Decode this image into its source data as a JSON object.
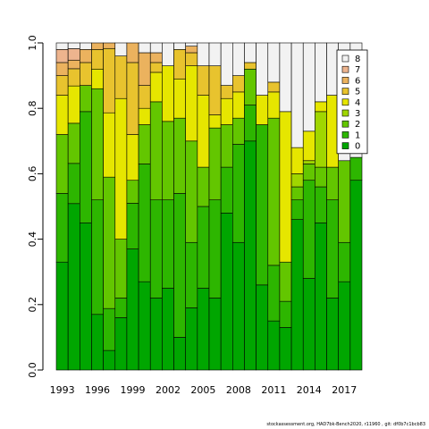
{
  "chart_data": {
    "type": "bar",
    "stacked": true,
    "normalized": true,
    "ylim": [
      0,
      1
    ],
    "x_tick_labels": [
      "1993",
      "1996",
      "1999",
      "2002",
      "2005",
      "2008",
      "2011",
      "2014",
      "2017"
    ],
    "y_tick_labels": [
      "0.0",
      "0.2",
      "0.4",
      "0.6",
      "0.8",
      "1.0"
    ],
    "categories": [
      "1993",
      "1994",
      "1995",
      "1996",
      "1997",
      "1998",
      "1999",
      "2000",
      "2001",
      "2002",
      "2003",
      "2004",
      "2005",
      "2006",
      "2007",
      "2008",
      "2009",
      "2010",
      "2011",
      "2012",
      "2013",
      "2014",
      "2015",
      "2016",
      "2017",
      "2018"
    ],
    "series": [
      {
        "name": "0",
        "color": "#00A600",
        "values": [
          0.33,
          0.58,
          0.45,
          0.17,
          0.07,
          0.16,
          0.37,
          0.27,
          0.22,
          0.25,
          0.1,
          0.19,
          0.25,
          0.22,
          0.48,
          0.39,
          0.7,
          0.26,
          0.15,
          0.13,
          0.46,
          0.28,
          0.45,
          0.22,
          0.27,
          0.58
        ]
      },
      {
        "name": "1",
        "color": "#2DB600",
        "values": [
          0.21,
          0.14,
          0.34,
          0.35,
          0.15,
          0.06,
          0.14,
          0.36,
          0.3,
          0.27,
          0.44,
          0.2,
          0.25,
          0.3,
          0.14,
          0.3,
          0.11,
          0.49,
          0.17,
          0.08,
          0.06,
          0.3,
          0.11,
          0.3,
          0.12,
          0.07
        ]
      },
      {
        "name": "2",
        "color": "#63C600",
        "values": [
          0.18,
          0.14,
          0.08,
          0.34,
          0.47,
          0.18,
          0.07,
          0.12,
          0.3,
          0.24,
          0.23,
          0.31,
          0.12,
          0.22,
          0.13,
          0.08,
          0.11,
          0.0,
          0.45,
          0.12,
          0.04,
          0.05,
          0.06,
          0.1,
          0.25,
          0.0
        ]
      },
      {
        "name": "3",
        "color": "#A0D600",
        "values": [
          0.0,
          0.0,
          0.0,
          0.0,
          0.0,
          0.0,
          0.0,
          0.0,
          0.0,
          0.0,
          0.0,
          0.0,
          0.0,
          0.0,
          0.0,
          0.0,
          0.0,
          0.0,
          0.0,
          0.0,
          0.04,
          0.01,
          0.17,
          0.0,
          0.0,
          0.0
        ]
      },
      {
        "name": "4",
        "color": "#E6E600",
        "values": [
          0.12,
          0.13,
          0.0,
          0.06,
          0.23,
          0.43,
          0.14,
          0.05,
          0.09,
          0.17,
          0.12,
          0.23,
          0.22,
          0.04,
          0.08,
          0.08,
          0.0,
          0.09,
          0.08,
          0.46,
          0.08,
          0.09,
          0.03,
          0.22,
          0.0,
          0.0
        ]
      },
      {
        "name": "5",
        "color": "#E8C32E",
        "values": [
          0.06,
          0.06,
          0.07,
          0.06,
          0.23,
          0.13,
          0.22,
          0.07,
          0.03,
          0.0,
          0.09,
          0.04,
          0.09,
          0.15,
          0.04,
          0.05,
          0.02,
          0.0,
          0.03,
          0.0,
          0.0,
          0.0,
          0.0,
          0.0,
          0.0,
          0.0
        ]
      },
      {
        "name": "6",
        "color": "#EBB25E",
        "values": [
          0.04,
          0.03,
          0.04,
          0.02,
          0.02,
          0.0,
          0.06,
          0.1,
          0.03,
          0.0,
          0.0,
          0.02,
          0.0,
          0.0,
          0.0,
          0.0,
          0.0,
          0.0,
          0.0,
          0.0,
          0.0,
          0.0,
          0.0,
          0.0,
          0.0,
          0.0
        ]
      },
      {
        "name": "7",
        "color": "#EDB48E",
        "values": [
          0.04,
          0.04,
          0.0,
          0.0,
          0.0,
          0.0,
          0.0,
          0.0,
          0.0,
          0.0,
          0.0,
          0.0,
          0.0,
          0.0,
          0.0,
          0.0,
          0.0,
          0.0,
          0.0,
          0.0,
          0.0,
          0.0,
          0.0,
          0.0,
          0.0,
          0.0
        ]
      },
      {
        "name": "8",
        "color": "#F2F2F2",
        "values": [
          0.02,
          0.02,
          0.02,
          0.0,
          0.0,
          0.04,
          0.0,
          0.03,
          0.03,
          0.07,
          0.02,
          0.01,
          0.07,
          0.07,
          0.13,
          0.1,
          0.06,
          0.16,
          0.12,
          0.21,
          0.32,
          0.27,
          0.18,
          0.16,
          0.36,
          0.35
        ]
      }
    ],
    "legend_position": "top-right",
    "grid": false
  },
  "footnote": "stockassessment.org, HAD7bk-Bench2020, r11960 , git: df0b7c1bcb83"
}
